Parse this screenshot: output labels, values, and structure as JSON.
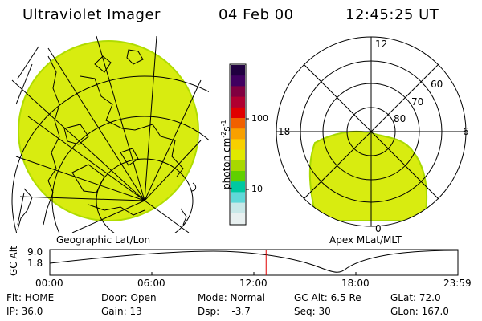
{
  "header": {
    "title": "Ultraviolet Imager",
    "date": "04 Feb 00",
    "time": "12:45:25 UT"
  },
  "geo_panel": {
    "caption": "Geographic Lat/Lon"
  },
  "apex_panel": {
    "caption": "Apex MLat/MLT",
    "mlt_labels": [
      "12",
      "18",
      "6",
      "0"
    ],
    "mlat_labels": [
      "60",
      "70",
      "80"
    ]
  },
  "colorbar": {
    "label": "photon cm-2s-1",
    "ticks": [
      "100",
      "10"
    ],
    "colors": [
      "#e8f0f0",
      "#c8e8e8",
      "#60d8d8",
      "#00c8a0",
      "#60d000",
      "#a8d800",
      "#e0e800",
      "#f8d000",
      "#f8a000",
      "#f06000",
      "#e00000",
      "#b00030",
      "#800040",
      "#400060",
      "#200040"
    ]
  },
  "timeline": {
    "axis_label": "GC Alt",
    "y_ticks": [
      "9.0",
      "1.8"
    ],
    "x_ticks": [
      "00:00",
      "06:00",
      "12:00",
      "18:00",
      "23:59"
    ],
    "current_time_fraction": 0.53,
    "marker_color": "#e00000"
  },
  "info": {
    "flt": "Flt: HOME",
    "door": "Door: Open",
    "mode": "Mode: Normal",
    "gc_alt": "GC Alt: 6.5 Re",
    "glat": "GLat:  72.0",
    "ip": "IP: 36.0",
    "gain": "Gain: 13",
    "dsp": "Dsp:    -3.7",
    "seq": "Seq: 30",
    "glon": "GLon: 167.0"
  },
  "colors": {
    "aurora_fill": "#d8ec10",
    "aurora_edge": "#a8d800",
    "grid": "#000000"
  }
}
